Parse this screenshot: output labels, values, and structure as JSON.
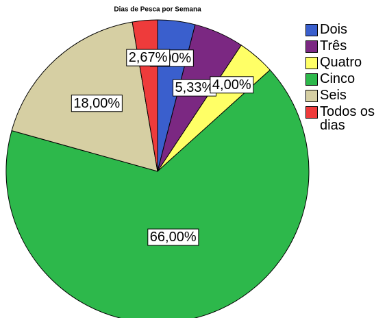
{
  "chart_data": {
    "type": "pie",
    "title": "Dias de Pesca por Semana",
    "categories": [
      "Dois",
      "Três",
      "Quatro",
      "Cinco",
      "Seis",
      "Todos os dias"
    ],
    "values": [
      4.0,
      5.33,
      4.0,
      66.0,
      18.0,
      2.67
    ],
    "value_labels": [
      "4,00%",
      "5,33%",
      "4,00%",
      "66,00%",
      "18,00%",
      "2,67%"
    ],
    "colors": [
      "#3a5fcd",
      "#7b2882",
      "#ffff66",
      "#2db84b",
      "#d6cfa3",
      "#ee3b3b"
    ],
    "legend": "right"
  }
}
